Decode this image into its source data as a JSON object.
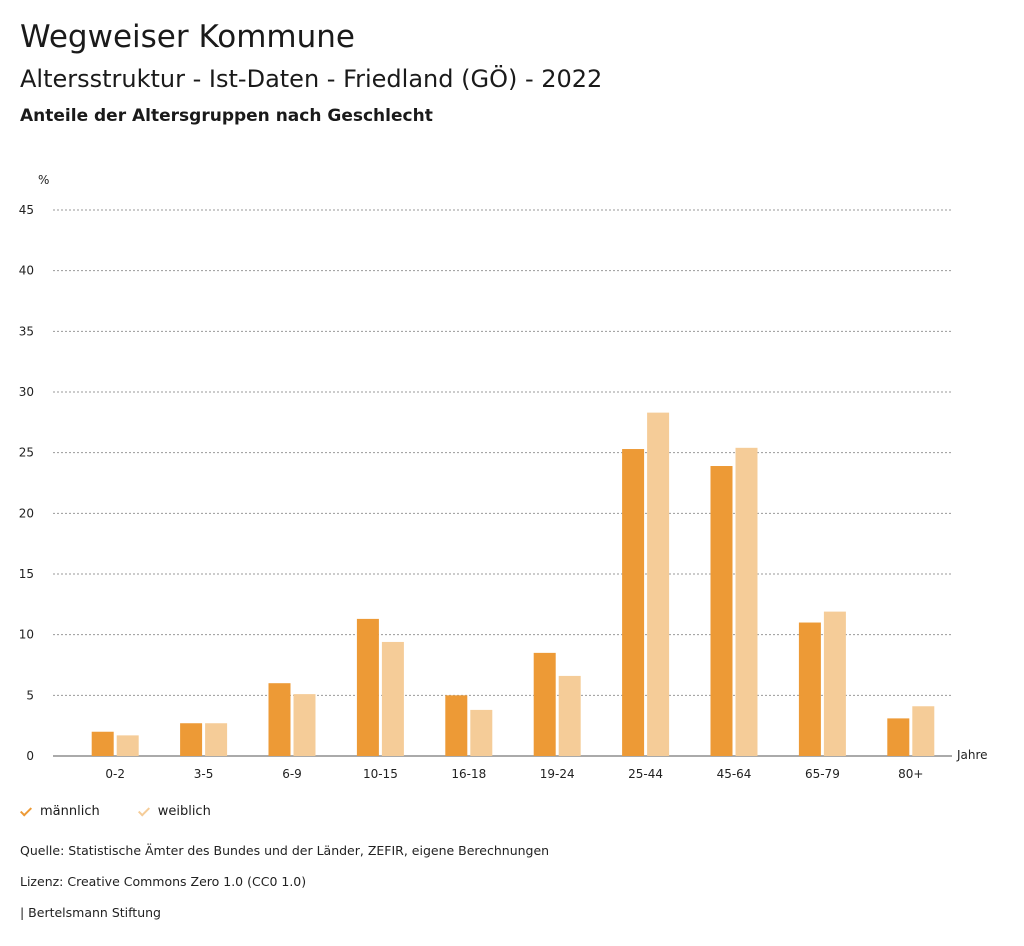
{
  "header": {
    "title": "Wegweiser Kommune",
    "subtitle": "Altersstruktur - Ist-Daten - Friedland (GÖ) - 2022",
    "chart_heading": "Anteile der Altersgruppen nach Geschlecht"
  },
  "colors": {
    "maennlich": "#ed9a36",
    "weiblich": "#f5cc98",
    "grid": "#9a9a9a",
    "axis": "#555555"
  },
  "chart_data": {
    "type": "bar",
    "title": "Anteile der Altersgruppen nach Geschlecht",
    "ylabel": "%",
    "xlabel": "Jahre",
    "ylim": [
      0,
      45
    ],
    "yticks": [
      0,
      5,
      10,
      15,
      20,
      25,
      30,
      35,
      40,
      45
    ],
    "grid": true,
    "categories": [
      "0-2",
      "3-5",
      "6-9",
      "10-15",
      "16-18",
      "19-24",
      "25-44",
      "45-64",
      "65-79",
      "80+"
    ],
    "series": [
      {
        "name": "männlich",
        "values": [
          2.0,
          2.7,
          6.0,
          11.3,
          5.0,
          8.5,
          25.3,
          23.9,
          11.0,
          3.1
        ]
      },
      {
        "name": "weiblich",
        "values": [
          1.7,
          2.7,
          5.1,
          9.4,
          3.8,
          6.6,
          28.3,
          25.4,
          11.9,
          4.1
        ]
      }
    ]
  },
  "legend": {
    "items": [
      {
        "label": "männlich"
      },
      {
        "label": "weiblich"
      }
    ]
  },
  "footer": {
    "source": "Quelle: Statistische Ämter des Bundes und der Länder, ZEFIR, eigene Berechnungen",
    "license": "Lizenz: Creative Commons Zero 1.0 (CC0 1.0)",
    "publisher": "| Bertelsmann Stiftung"
  }
}
